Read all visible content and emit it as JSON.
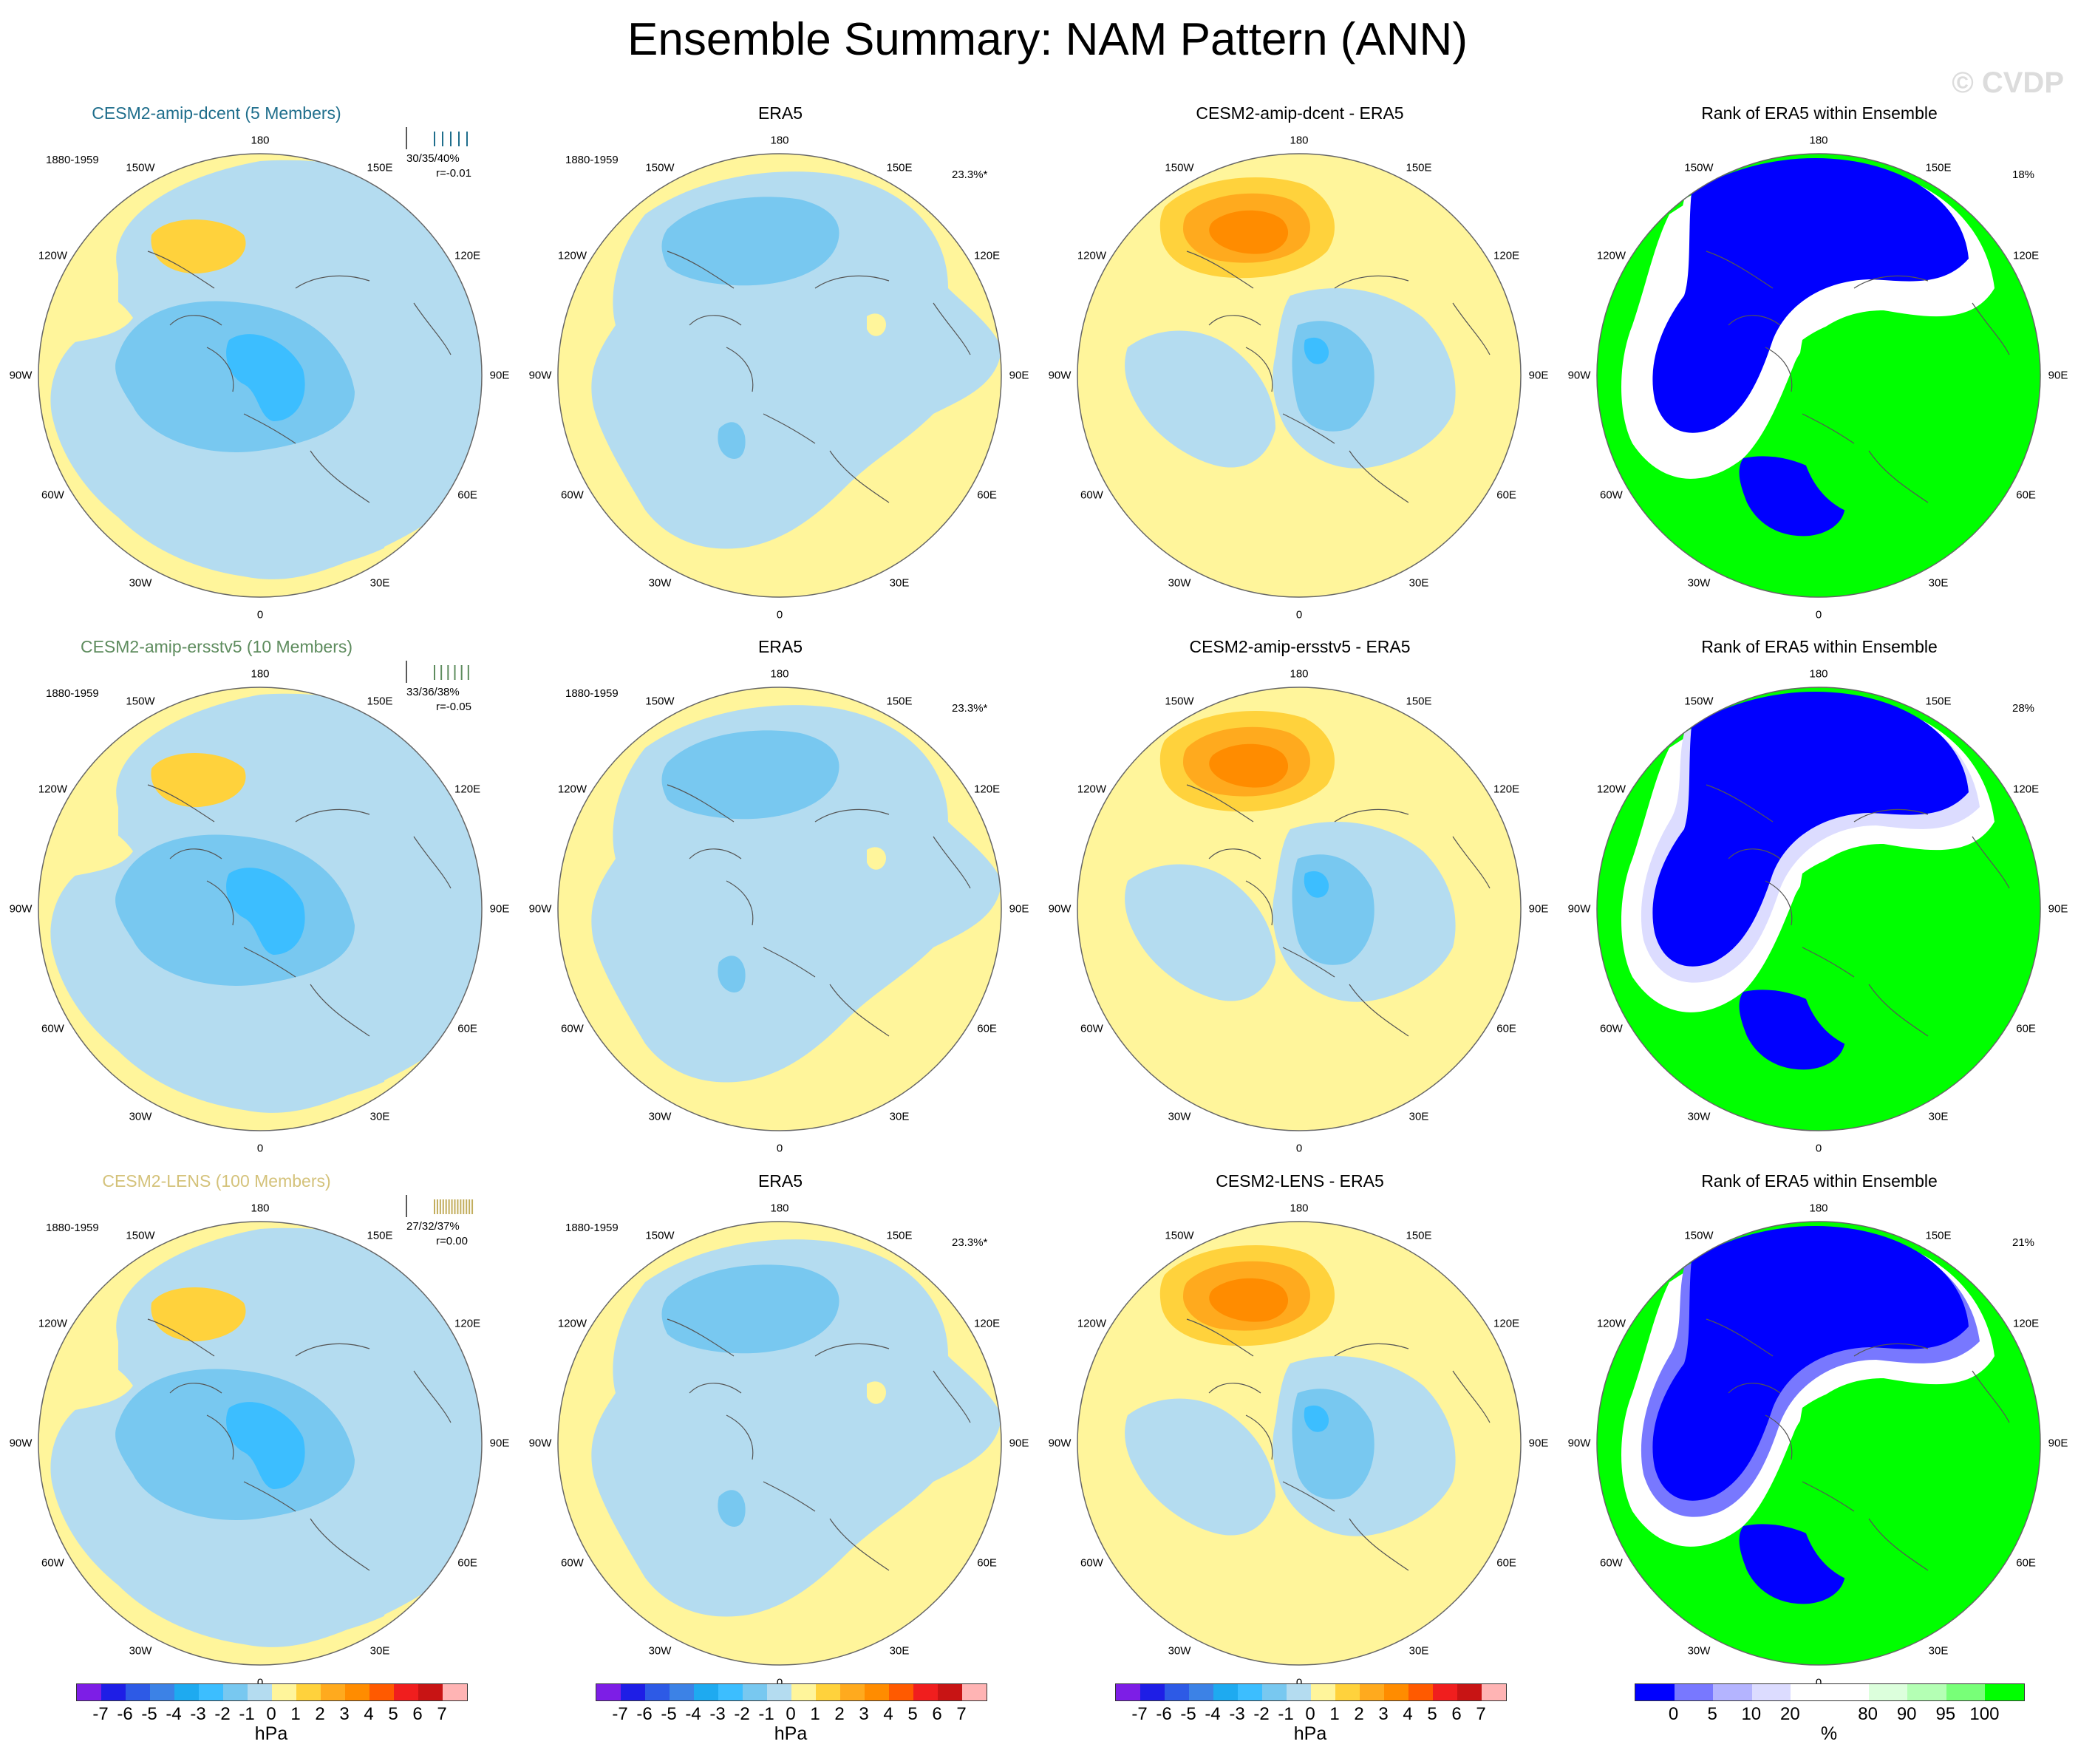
{
  "title": "Ensemble Summary: NAM Pattern (ANN)",
  "watermark": "© CVDP",
  "lon_labels": [
    "180",
    "150E",
    "120E",
    "90E",
    "60E",
    "30E",
    "0",
    "30W",
    "60W",
    "90W",
    "120W",
    "150W"
  ],
  "rows": [
    {
      "model": {
        "title": "CESM2-amip-dcent (5 Members)",
        "title_color": "#1f6e8c",
        "years": "1880-1959",
        "stats": "30/35/40%",
        "corr": "r=-0.01",
        "spark_color": "#1f6e8c"
      },
      "obs": {
        "title": "ERA5",
        "years": "1880-1959",
        "pct": "23.3%*"
      },
      "diff": {
        "title": "CESM2-amip-dcent - ERA5"
      },
      "rank": {
        "title": "Rank of ERA5 within Ensemble",
        "pct": "18%"
      }
    },
    {
      "model": {
        "title": "CESM2-amip-ersstv5 (10 Members)",
        "title_color": "#5e8c5e",
        "years": "1880-1959",
        "stats": "33/36/38%",
        "corr": "r=-0.05",
        "spark_color": "#5e8c5e"
      },
      "obs": {
        "title": "ERA5",
        "years": "1880-1959",
        "pct": "23.3%*"
      },
      "diff": {
        "title": "CESM2-amip-ersstv5 - ERA5"
      },
      "rank": {
        "title": "Rank of ERA5 within Ensemble",
        "pct": "28%"
      }
    },
    {
      "model": {
        "title": "CESM2-LENS (100 Members)",
        "title_color": "#d4c27a",
        "years": "1880-1959",
        "stats": "27/32/37%",
        "corr": "r=0.00",
        "spark_color": "#c2ad5c"
      },
      "obs": {
        "title": "ERA5",
        "years": "1880-1959",
        "pct": "23.3%*"
      },
      "diff": {
        "title": "CESM2-LENS - ERA5"
      },
      "rank": {
        "title": "Rank of ERA5 within Ensemble",
        "pct": "21%"
      }
    }
  ],
  "colorbar_hpa": {
    "colors": [
      "#7d1ee6",
      "#1e1ee6",
      "#2d5ae6",
      "#3c82e6",
      "#1eaaf0",
      "#3cbeff",
      "#78c8f0",
      "#b4dcf0",
      "#fff59b",
      "#ffd23c",
      "#ffaa1e",
      "#ff8c00",
      "#ff5a00",
      "#f01e1e",
      "#c81414",
      "#ffb4b4"
    ],
    "ticks": [
      "-7",
      "-6",
      "-5",
      "-4",
      "-3",
      "-2",
      "-1",
      "0",
      "1",
      "2",
      "3",
      "4",
      "5",
      "6",
      "7"
    ],
    "units": "hPa"
  },
  "colorbar_rank": {
    "colors": [
      "#0000ff",
      "#7878ff",
      "#b4b4ff",
      "#dcdcff",
      "#ffffff",
      "#ffffff",
      "#dcffdc",
      "#b4ffb4",
      "#78ff78",
      "#00ff00"
    ],
    "ticks": [
      "0",
      "5",
      "10",
      "20",
      "80",
      "90",
      "95",
      "100"
    ],
    "units": "%"
  }
}
